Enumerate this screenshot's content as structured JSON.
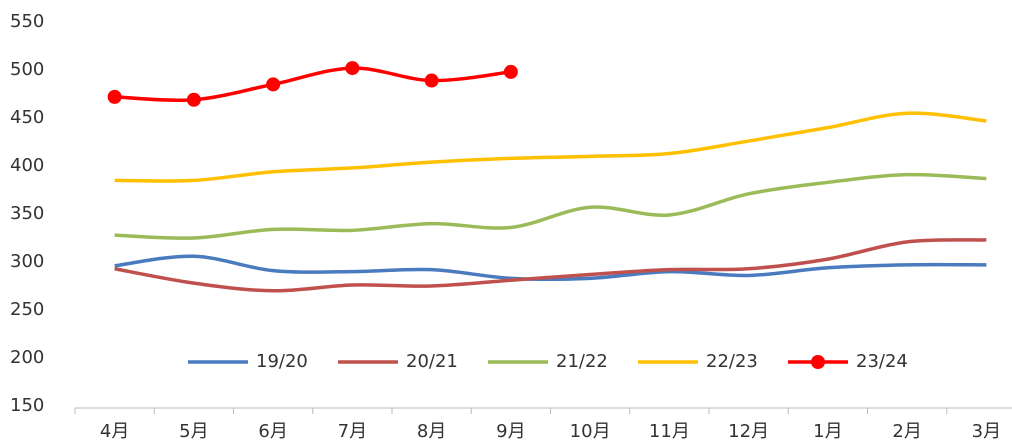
{
  "chart_data": {
    "type": "line",
    "categories": [
      "4月",
      "5月",
      "6月",
      "7月",
      "8月",
      "9月",
      "10月",
      "11月",
      "12月",
      "1月",
      "2月",
      "3月"
    ],
    "series": [
      {
        "name": "19/20",
        "color": "#4a7bbf",
        "values": [
          296,
          306,
          291,
          290,
          292,
          283,
          283,
          290,
          286,
          294,
          297,
          297
        ]
      },
      {
        "name": "20/21",
        "color": "#c0504d",
        "values": [
          293,
          278,
          270,
          276,
          275,
          281,
          287,
          292,
          293,
          303,
          321,
          323
        ]
      },
      {
        "name": "21/22",
        "color": "#9bbb59",
        "values": [
          328,
          325,
          334,
          333,
          340,
          336,
          357,
          349,
          371,
          383,
          391,
          387
        ]
      },
      {
        "name": "22/23",
        "color": "#ffc000",
        "values": [
          385,
          385,
          394,
          398,
          404,
          408,
          410,
          413,
          426,
          440,
          455,
          447
        ]
      },
      {
        "name": "23/24",
        "color": "#ff0000",
        "markers": true,
        "values": [
          472,
          469,
          485,
          502,
          489,
          498,
          null,
          null,
          null,
          null,
          null,
          null
        ]
      }
    ],
    "ylim": [
      150,
      550
    ],
    "yticks": [
      150,
      200,
      250,
      300,
      350,
      400,
      450,
      500,
      550
    ],
    "grid": false,
    "legend": "bottom"
  }
}
